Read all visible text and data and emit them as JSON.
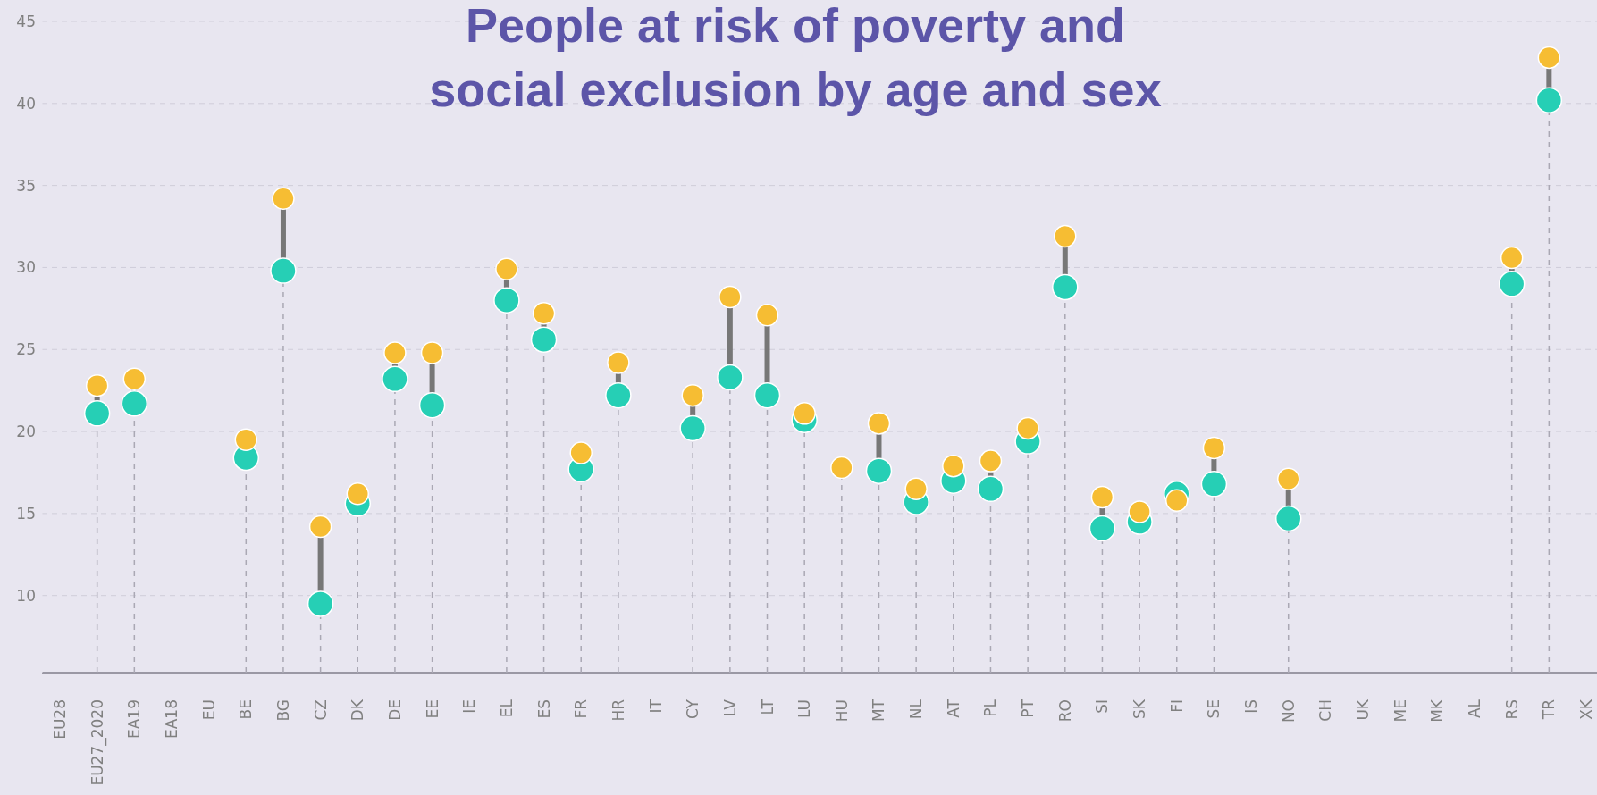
{
  "chart_data": {
    "type": "lollipop",
    "title": "People at risk of poverty and\nsocial exclusion by age and sex",
    "categories": [
      "EU28",
      "EU27_2020",
      "EA19",
      "EA18",
      "EU",
      "BE",
      "BG",
      "CZ",
      "DK",
      "DE",
      "EE",
      "IE",
      "EL",
      "ES",
      "FR",
      "HR",
      "IT",
      "CY",
      "LV",
      "LT",
      "LU",
      "HU",
      "MT",
      "NL",
      "AT",
      "PL",
      "PT",
      "RO",
      "SI",
      "SK",
      "FI",
      "SE",
      "IS",
      "NO",
      "CH",
      "UK",
      "ME",
      "MK",
      "AL",
      "RS",
      "TR",
      "XK"
    ],
    "series": [
      {
        "color": "#26cfb5",
        "values": [
          null,
          21.1,
          21.7,
          null,
          null,
          18.4,
          29.8,
          9.5,
          15.6,
          23.2,
          21.6,
          null,
          28.0,
          25.6,
          17.7,
          22.2,
          null,
          20.2,
          23.3,
          22.2,
          20.7,
          null,
          17.6,
          15.7,
          17.0,
          16.5,
          19.4,
          28.8,
          14.1,
          14.5,
          16.2,
          16.8,
          null,
          14.7,
          null,
          null,
          null,
          null,
          null,
          29.0,
          40.2,
          null
        ]
      },
      {
        "color": "#f6bd33",
        "values": [
          null,
          22.8,
          23.2,
          null,
          null,
          19.5,
          34.2,
          14.2,
          16.2,
          24.8,
          24.8,
          null,
          29.9,
          27.2,
          18.7,
          24.2,
          null,
          22.2,
          28.2,
          27.1,
          21.1,
          17.8,
          20.5,
          16.5,
          17.9,
          18.2,
          20.2,
          31.9,
          16.0,
          15.1,
          15.8,
          19.0,
          null,
          17.1,
          null,
          null,
          null,
          null,
          null,
          30.6,
          42.8,
          null
        ]
      }
    ],
    "ylim": [
      5.3,
      45
    ],
    "yticks": [
      10,
      15,
      20,
      25,
      30,
      35,
      40,
      45
    ],
    "grid": "y",
    "line_style": "dashed",
    "marker": "circle"
  }
}
